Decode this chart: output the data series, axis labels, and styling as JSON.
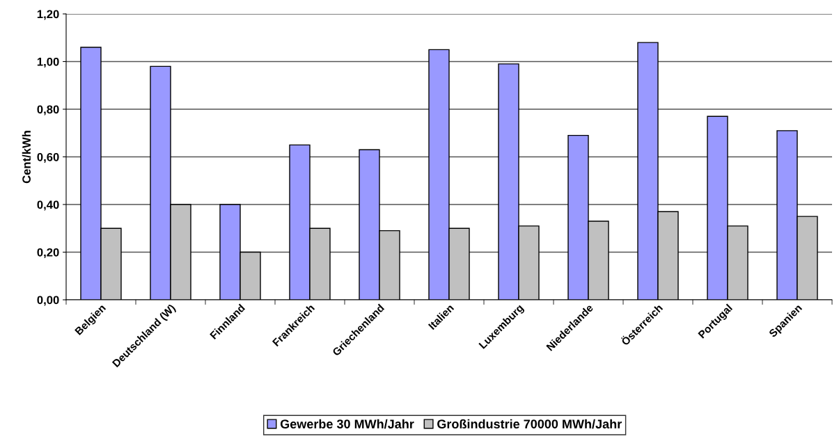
{
  "chart_data": {
    "type": "bar",
    "ylabel": "Cent/kWh",
    "categories": [
      "Belgien",
      "Deutschland (W)",
      "Finnland",
      "Frankreich",
      "Griechenland",
      "Italien",
      "Luxemburg",
      "Niederlande",
      "Österreich",
      "Portugal",
      "Spanien"
    ],
    "series": [
      {
        "name": "Gewerbe 30 MWh/Jahr",
        "color": "#9999ff",
        "values": [
          1.06,
          0.98,
          0.4,
          0.65,
          0.63,
          1.05,
          0.99,
          0.69,
          1.08,
          0.77,
          0.71
        ]
      },
      {
        "name": "Großindustrie 70000 MWh/Jahr",
        "color": "#c0c0c0",
        "values": [
          0.3,
          0.4,
          0.2,
          0.3,
          0.29,
          0.3,
          0.31,
          0.33,
          0.37,
          0.31,
          0.35
        ]
      }
    ],
    "ylim": [
      0,
      1.2
    ],
    "yticks": [
      {
        "value": 0,
        "label": "0,00"
      },
      {
        "value": 0.2,
        "label": "0,20"
      },
      {
        "value": 0.4,
        "label": "0,40"
      },
      {
        "value": 0.6,
        "label": "0,60"
      },
      {
        "value": 0.8,
        "label": "0,80"
      },
      {
        "value": 1.0,
        "label": "1,00"
      },
      {
        "value": 1.2,
        "label": "1,20"
      }
    ],
    "grid": "y",
    "legend": "bottom"
  }
}
